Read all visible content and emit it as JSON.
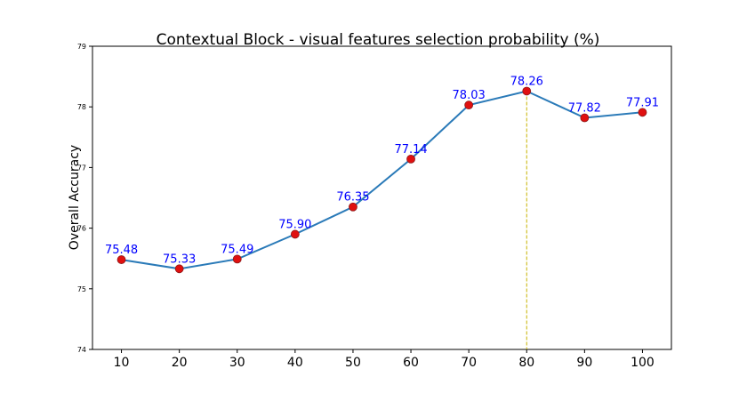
{
  "chart_data": {
    "type": "line",
    "title": "Contextual Block - visual features selection probability (%)",
    "xlabel": "",
    "ylabel": "Overall Accuracy",
    "x": [
      10,
      20,
      30,
      40,
      50,
      60,
      70,
      80,
      90,
      100
    ],
    "series": [
      {
        "values": [
          75.48,
          75.33,
          75.49,
          75.9,
          76.35,
          77.14,
          78.03,
          78.26,
          77.82,
          77.91
        ],
        "data_labels": [
          "75.48",
          "75.33",
          "75.49",
          "75.90",
          "76.35",
          "77.14",
          "78.03",
          "78.26",
          "77.82",
          "77.91"
        ]
      }
    ],
    "x_tick_labels": [
      "10",
      "20",
      "30",
      "40",
      "50",
      "60",
      "70",
      "80",
      "90",
      "100"
    ],
    "y_ticks": [
      74,
      75,
      76,
      77,
      78,
      79
    ],
    "y_tick_labels": [
      "74",
      "75",
      "76",
      "77",
      "78",
      "79"
    ],
    "ylim": [
      74,
      79
    ],
    "xlim": [
      5,
      105
    ],
    "highlight_x": 80,
    "grid": false,
    "colors": {
      "line": "#2a7ab8",
      "marker": "#e01010",
      "marker_edge": "#8b1a1a",
      "data_label": "#0000ff",
      "highlight_line": "#c8b400"
    }
  }
}
